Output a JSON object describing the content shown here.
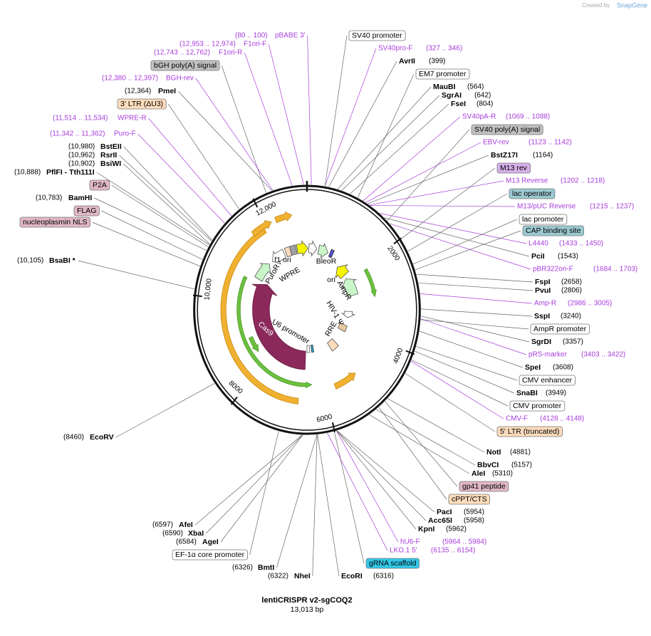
{
  "brand": "Created by",
  "brand_name": "SnapGene",
  "title": "lentiCRISPR v2-sgCOQ2",
  "length": {
    "value": 13013,
    "label": "13,013 bp"
  },
  "map_ticks": [
    2000,
    4000,
    6000,
    8000,
    {
      "value": 10000,
      "label": "10,000"
    },
    {
      "value": 12000,
      "label": "12,000"
    }
  ],
  "inner_features": [
    "f1 ori",
    "BleoR",
    "PuroR",
    "WPRE",
    "ori",
    "AmpR",
    "HIV-1 Ψ",
    "RRE",
    "U6 promoter",
    "Cas9"
  ],
  "labels": [
    {
      "name": "pBABE 3'",
      "coords": "(80 .. 100)",
      "kind": "primer"
    },
    {
      "name": "F1ori-F",
      "coords": "(12,953 .. 12,974)",
      "kind": "primer"
    },
    {
      "name": "F1ori-R",
      "coords": "(12,743 .. 12,762)",
      "kind": "primer"
    },
    {
      "name": "bGH poly(A) signal",
      "kind": "feature",
      "color": "#c0c0c0"
    },
    {
      "name": "BGH-rev",
      "coords": "(12,380 .. 12,397)",
      "kind": "primer"
    },
    {
      "name": "PmeI",
      "coords": "(12,364)",
      "kind": "site"
    },
    {
      "name": "3' LTR (ΔU3)",
      "kind": "feature",
      "color": "#fcdcbc"
    },
    {
      "name": "WPRE-R",
      "coords": "(11,514 .. 11,534)",
      "kind": "primer"
    },
    {
      "name": "Puro-F",
      "coords": "(11,342 .. 11,362)",
      "kind": "primer"
    },
    {
      "name": "BstEII",
      "coords": "(10,980)",
      "kind": "site"
    },
    {
      "name": "RsrII",
      "coords": "(10,962)",
      "kind": "site"
    },
    {
      "name": "BsiWI",
      "coords": "(10,902)",
      "kind": "site"
    },
    {
      "name": "PflFI - Tth111I",
      "coords": "(10,888)",
      "kind": "site"
    },
    {
      "name": "P2A",
      "kind": "feature",
      "color": "#e0b7c5"
    },
    {
      "name": "BamHI",
      "coords": "(10,783)",
      "kind": "site"
    },
    {
      "name": "FLAG",
      "kind": "feature",
      "color": "#e0b7c5"
    },
    {
      "name": "nucleoplasmin NLS",
      "kind": "feature",
      "color": "#e0b7c5"
    },
    {
      "name": "BsaBI *",
      "coords": "(10,105)",
      "kind": "site"
    },
    {
      "name": "EcoRV",
      "coords": "(8460)",
      "kind": "site"
    },
    {
      "name": "AfeI",
      "coords": "(6597)",
      "kind": "site"
    },
    {
      "name": "XbaI",
      "coords": "(6590)",
      "kind": "site"
    },
    {
      "name": "AgeI",
      "coords": "(6584)",
      "kind": "site"
    },
    {
      "name": "EF-1α core promoter",
      "kind": "feature",
      "color": "#ffffff"
    },
    {
      "name": "BmtI",
      "coords": "(6326)",
      "kind": "site"
    },
    {
      "name": "NheI",
      "coords": "(6322)",
      "kind": "site"
    },
    {
      "name": "EcoRI",
      "coords": "(6316)",
      "kind": "site"
    },
    {
      "name": "gRNA scaffold",
      "kind": "feature",
      "color": "#32c8e8"
    },
    {
      "name": "LKO.1 5'",
      "coords": "(6135 .. 6154)",
      "kind": "primer"
    },
    {
      "name": "hU6-F",
      "coords": "(5964 .. 5984)",
      "kind": "primer"
    },
    {
      "name": "KpnI",
      "coords": "(5962)",
      "kind": "site"
    },
    {
      "name": "Acc65I",
      "coords": "(5958)",
      "kind": "site"
    },
    {
      "name": "PacI",
      "coords": "(5954)",
      "kind": "site"
    },
    {
      "name": "cPPT/CTS",
      "kind": "feature",
      "color": "#fcdcbc"
    },
    {
      "name": "gp41 peptide",
      "kind": "feature",
      "color": "#e0b7c5"
    },
    {
      "name": "AleI",
      "coords": "(5310)",
      "kind": "site"
    },
    {
      "name": "BbvCI",
      "coords": "(5157)",
      "kind": "site"
    },
    {
      "name": "NotI",
      "coords": "(4881)",
      "kind": "site"
    },
    {
      "name": "5' LTR (truncated)",
      "kind": "feature",
      "color": "#fcdcbc"
    },
    {
      "name": "CMV-F",
      "coords": "(4128 .. 4148)",
      "kind": "primer"
    },
    {
      "name": "CMV promoter",
      "kind": "feature",
      "color": "#ffffff"
    },
    {
      "name": "SnaBI",
      "coords": "(3949)",
      "kind": "site"
    },
    {
      "name": "CMV enhancer",
      "kind": "feature",
      "color": "#ffffff"
    },
    {
      "name": "SpeI",
      "coords": "(3608)",
      "kind": "site"
    },
    {
      "name": "pRS-marker",
      "coords": "(3403 .. 3422)",
      "kind": "primer"
    },
    {
      "name": "SgrDI",
      "coords": "(3357)",
      "kind": "site"
    },
    {
      "name": "AmpR promoter",
      "kind": "feature",
      "color": "#ffffff"
    },
    {
      "name": "SspI",
      "coords": "(3240)",
      "kind": "site"
    },
    {
      "name": "Amp-R",
      "coords": "(2986 .. 3005)",
      "kind": "primer"
    },
    {
      "name": "PvuI",
      "coords": "(2806)",
      "kind": "site"
    },
    {
      "name": "FspI",
      "coords": "(2658)",
      "kind": "site"
    },
    {
      "name": "pBR322ori-F",
      "coords": "(1684 .. 1703)",
      "kind": "primer"
    },
    {
      "name": "PciI",
      "coords": "(1543)",
      "kind": "site"
    },
    {
      "name": "L4440",
      "coords": "(1433 .. 1450)",
      "kind": "primer"
    },
    {
      "name": "CAP binding site",
      "kind": "feature",
      "color": "#9cc9d1"
    },
    {
      "name": "lac promoter",
      "kind": "feature",
      "color": "#ffffff"
    },
    {
      "name": "M13/pUC Reverse",
      "coords": "(1215 .. 1237)",
      "kind": "primer"
    },
    {
      "name": "lac operator",
      "kind": "feature",
      "color": "#9cc9d1"
    },
    {
      "name": "M13 Reverse",
      "coords": "(1202 .. 1218)",
      "kind": "primer"
    },
    {
      "name": "M13 rev",
      "kind": "feature",
      "color": "#d6b0ea"
    },
    {
      "name": "BstZ17I",
      "coords": "(1164)",
      "kind": "site"
    },
    {
      "name": "EBV-rev",
      "coords": "(1123 .. 1142)",
      "kind": "primer"
    },
    {
      "name": "SV40 poly(A) signal",
      "kind": "feature",
      "color": "#c0c0c0"
    },
    {
      "name": "SV40pA-R",
      "coords": "(1069 .. 1088)",
      "kind": "primer"
    },
    {
      "name": "FseI",
      "coords": "(804)",
      "kind": "site"
    },
    {
      "name": "SgrAI",
      "coords": "(642)",
      "kind": "site"
    },
    {
      "name": "MauBI",
      "coords": "(564)",
      "kind": "site"
    },
    {
      "name": "EM7 promoter",
      "kind": "feature",
      "color": "#ffffff"
    },
    {
      "name": "AvrII",
      "coords": "(399)",
      "kind": "site"
    },
    {
      "name": "SV40pro-F",
      "coords": "(327 .. 346)",
      "kind": "primer"
    },
    {
      "name": "SV40 promoter",
      "kind": "feature",
      "color": "#ffffff"
    }
  ]
}
